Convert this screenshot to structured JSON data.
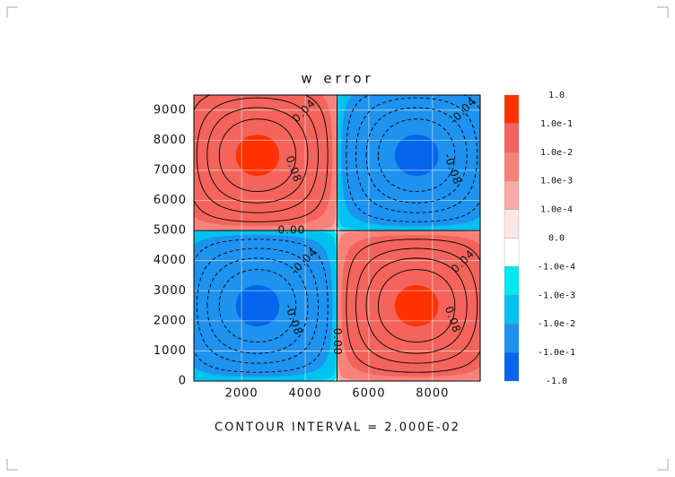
{
  "chart_data": {
    "type": "contour",
    "title": "w error",
    "xlim": [
      500,
      9500
    ],
    "ylim": [
      0,
      9500
    ],
    "xticks": [
      2000,
      4000,
      6000,
      8000
    ],
    "yticks": [
      0,
      1000,
      2000,
      3000,
      4000,
      5000,
      6000,
      7000,
      8000,
      9000
    ],
    "grid": true,
    "peaks": [
      {
        "x": 2500,
        "y": 7500,
        "value": 0.11
      },
      {
        "x": 7500,
        "y": 7500,
        "value": -0.11
      },
      {
        "x": 2500,
        "y": 2500,
        "value": -0.11
      },
      {
        "x": 7500,
        "y": 2500,
        "value": 0.11
      }
    ],
    "contour_levels": [
      -0.08,
      -0.06,
      -0.04,
      -0.02,
      {
        "value": 0,
        "label": "0.00"
      },
      0.02,
      0.04,
      0.06,
      0.08
    ],
    "colorbar": {
      "levels": [
        {
          "value": 1,
          "label": "1.0"
        },
        {
          "value": 0.1,
          "label": "1.0e-1"
        },
        {
          "value": 0.01,
          "label": "1.0e-2"
        },
        {
          "value": 0.001,
          "label": "1.0e-3"
        },
        {
          "value": 0.0001,
          "label": "1.0e-4"
        },
        {
          "value": 0,
          "label": "0.0"
        },
        {
          "value": -0.0001,
          "label": "-1.0e-4"
        },
        {
          "value": -0.001,
          "label": "-1.0e-3"
        },
        {
          "value": -0.01,
          "label": "-1.0e-2"
        },
        {
          "value": -0.1,
          "label": "-1.0e-1"
        },
        {
          "value": -1,
          "label": "-1.0"
        }
      ],
      "colors": [
        "#ff3300",
        "#f4645c",
        "#f7827c",
        "#faa9a6",
        "#fde6e6",
        "#ffffff",
        "#00e8f0",
        "#00c2f0",
        "#1d92ee",
        "#0366ec"
      ]
    },
    "footer": "CONTOUR INTERVAL = 2.000E-02"
  }
}
